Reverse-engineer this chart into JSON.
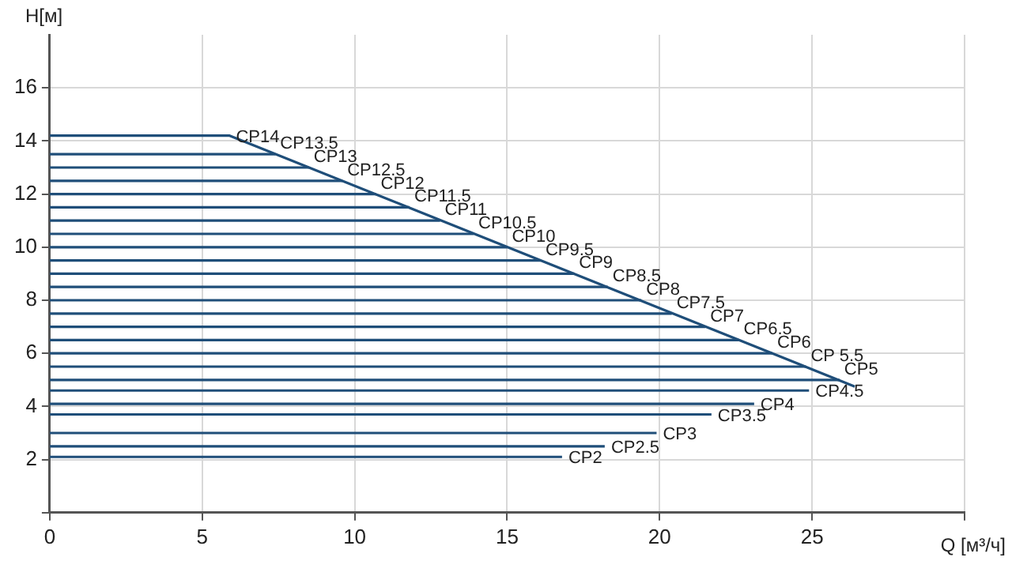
{
  "chart_data": {
    "type": "line",
    "xlabel": "Q [м³/ч]",
    "ylabel": "H[м]",
    "xlim": [
      0,
      30
    ],
    "xticks": [
      0,
      5,
      10,
      15,
      20,
      25,
      {
        "value": 30,
        "label": null
      }
    ],
    "ylim": [
      0,
      18
    ],
    "yticks": [
      {
        "value": 0,
        "label": null
      },
      2,
      4,
      6,
      8,
      10,
      12,
      14,
      16
    ],
    "grid": true,
    "legend": false,
    "marker": "none",
    "line_style": "solid",
    "series": [
      {
        "name": "CP14",
        "color": "#1f4e79",
        "x": [
          0,
          5.9,
          26.4
        ],
        "values": [
          14.2,
          14.2,
          4.75
        ]
      },
      {
        "name": "CP13.5",
        "color": "#1f4e79",
        "x": [
          0,
          7.4
        ],
        "values": [
          13.5,
          13.5
        ]
      },
      {
        "name": "CP13",
        "color": "#1f4e79",
        "x": [
          0,
          8.5
        ],
        "values": [
          13,
          13
        ]
      },
      {
        "name": "CP12.5",
        "color": "#1f4e79",
        "x": [
          0,
          9.6
        ],
        "values": [
          12.5,
          12.5
        ]
      },
      {
        "name": "CP12",
        "color": "#1f4e79",
        "x": [
          0,
          10.7
        ],
        "values": [
          12,
          12
        ]
      },
      {
        "name": "CP11.5",
        "color": "#1f4e79",
        "x": [
          0,
          11.8
        ],
        "values": [
          11.5,
          11.5
        ]
      },
      {
        "name": "CP11",
        "color": "#1f4e79",
        "x": [
          0,
          12.8
        ],
        "values": [
          11,
          11
        ]
      },
      {
        "name": "CP10.5",
        "color": "#1f4e79",
        "x": [
          0,
          13.9
        ],
        "values": [
          10.5,
          10.5
        ]
      },
      {
        "name": "CP10",
        "color": "#1f4e79",
        "x": [
          0,
          15
        ],
        "values": [
          10,
          10
        ]
      },
      {
        "name": "CP9.5",
        "color": "#1f4e79",
        "x": [
          0,
          16.1
        ],
        "values": [
          9.5,
          9.5
        ]
      },
      {
        "name": "CP9",
        "color": "#1f4e79",
        "x": [
          0,
          17.2
        ],
        "values": [
          9,
          9
        ]
      },
      {
        "name": "CP8.5",
        "color": "#1f4e79",
        "x": [
          0,
          18.3
        ],
        "values": [
          8.5,
          8.5
        ]
      },
      {
        "name": "CP8",
        "color": "#1f4e79",
        "x": [
          0,
          19.4
        ],
        "values": [
          8,
          8
        ]
      },
      {
        "name": "CP7.5",
        "color": "#1f4e79",
        "x": [
          0,
          20.4
        ],
        "values": [
          7.5,
          7.5
        ]
      },
      {
        "name": "CP7",
        "color": "#1f4e79",
        "x": [
          0,
          21.5
        ],
        "values": [
          7,
          7
        ]
      },
      {
        "name": "CP6.5",
        "color": "#1f4e79",
        "x": [
          0,
          22.6
        ],
        "values": [
          6.5,
          6.5
        ]
      },
      {
        "name": "CP6",
        "color": "#1f4e79",
        "x": [
          0,
          23.7
        ],
        "values": [
          6,
          6
        ]
      },
      {
        "name": "CP 5.5",
        "color": "#1f4e79",
        "x": [
          0,
          24.8
        ],
        "values": [
          5.5,
          5.5
        ]
      },
      {
        "name": "CP5",
        "color": "#1f4e79",
        "x": [
          0,
          25.9
        ],
        "values": [
          5,
          5
        ]
      },
      {
        "name": "CP4.5",
        "color": "#1f4e79",
        "x": [
          0,
          24.9
        ],
        "values": [
          4.6,
          4.6
        ]
      },
      {
        "name": "CP4",
        "color": "#1f4e79",
        "x": [
          0,
          23.1
        ],
        "values": [
          4.1,
          4.1
        ]
      },
      {
        "name": "CP3.5",
        "color": "#1f4e79",
        "x": [
          0,
          21.7
        ],
        "values": [
          3.7,
          3.7
        ]
      },
      {
        "name": "CP3",
        "color": "#1f4e79",
        "x": [
          0,
          19.9
        ],
        "values": [
          3,
          3
        ]
      },
      {
        "name": "CP2.5",
        "color": "#1f4e79",
        "x": [
          0,
          18.2
        ],
        "values": [
          2.5,
          2.5
        ]
      },
      {
        "name": "CP2",
        "color": "#1f4e79",
        "x": [
          0,
          16.8
        ],
        "values": [
          2.1,
          2.1
        ]
      }
    ]
  }
}
